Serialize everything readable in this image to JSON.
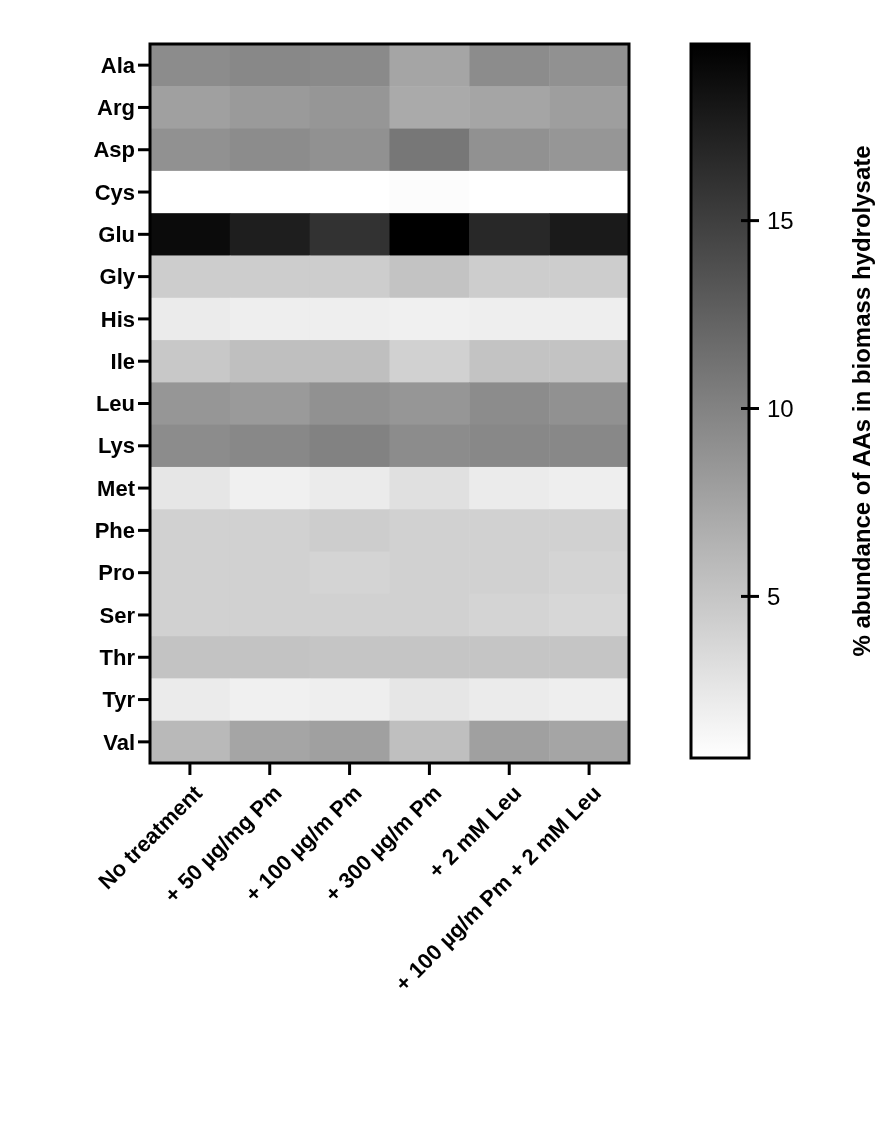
{
  "chart_data": {
    "type": "heatmap",
    "clabel": "% abundance of AAs in biomass hydrolysate",
    "categories": [
      "No treatment",
      "+ 50 µg/mg Pm",
      "+ 100 µg/m Pm",
      "+ 300 µg/m Pm",
      "+ 2 mM Leu",
      "+ 100 µg/m Pm + 2 mM Leu"
    ],
    "y_categories": [
      "Ala",
      "Arg",
      "Asp",
      "Cys",
      "Glu",
      "Gly",
      "His",
      "Ile",
      "Leu",
      "Lys",
      "Met",
      "Phe",
      "Pro",
      "Ser",
      "Thr",
      "Tyr",
      "Val"
    ],
    "cells": [
      [
        9.3,
        9.6,
        9.4,
        7.4,
        9.3,
        8.9
      ],
      [
        7.8,
        8.2,
        8.5,
        7.0,
        7.4,
        7.9
      ],
      [
        8.9,
        9.3,
        8.9,
        10.8,
        8.9,
        8.5
      ],
      [
        0.7,
        0.7,
        0.7,
        0.9,
        0.7,
        0.7
      ],
      [
        18.9,
        17.5,
        16.0,
        19.7,
        16.7,
        17.8
      ],
      [
        4.4,
        4.4,
        4.4,
        5.2,
        4.4,
        4.4
      ],
      [
        2.2,
        2.0,
        2.0,
        1.8,
        2.0,
        2.0
      ],
      [
        4.8,
        5.5,
        5.5,
        4.1,
        5.2,
        5.2
      ],
      [
        8.5,
        8.2,
        8.9,
        8.5,
        9.3,
        8.9
      ],
      [
        9.3,
        9.6,
        10.0,
        9.3,
        9.6,
        9.6
      ],
      [
        2.6,
        1.8,
        2.2,
        3.0,
        2.2,
        2.0
      ],
      [
        4.1,
        4.1,
        4.4,
        4.1,
        4.1,
        4.1
      ],
      [
        4.1,
        4.1,
        3.9,
        4.1,
        4.1,
        3.9
      ],
      [
        4.1,
        4.1,
        4.1,
        4.1,
        3.9,
        3.7
      ],
      [
        5.2,
        5.2,
        5.0,
        5.0,
        5.0,
        5.0
      ],
      [
        2.2,
        1.8,
        2.0,
        2.6,
        2.2,
        2.0
      ],
      [
        5.9,
        7.4,
        7.8,
        5.5,
        7.8,
        7.4
      ]
    ],
    "clim": [
      0.7,
      19.7
    ],
    "cticks": [
      5,
      10,
      15
    ]
  }
}
